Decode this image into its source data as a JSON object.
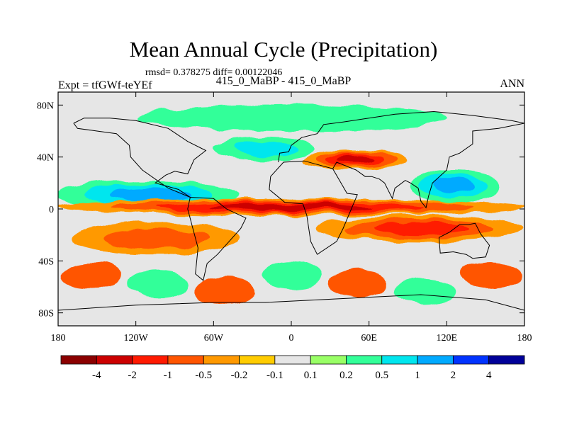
{
  "header": {
    "title": "Mean Annual Cycle (Precipitation)",
    "stats": "rmsd= 0.378275 diff= 0.00122046",
    "subtitle": "415_0_MaBP - 415_0_MaBP",
    "left_label": "Expt = tfGWf-teYEf",
    "right_label": "ANN"
  },
  "chart_data": {
    "type": "heatmap",
    "title": "Mean Annual Cycle (Precipitation)",
    "projection": "cylindrical equidistant (longitude-latitude) map with continent outlines",
    "x_axis": {
      "range": [
        -180,
        180
      ],
      "ticks": [
        -180,
        -120,
        -60,
        0,
        60,
        120,
        180
      ],
      "tick_labels": [
        "180",
        "120W",
        "60W",
        "0",
        "60E",
        "120E",
        "180"
      ]
    },
    "y_axis": {
      "range": [
        -90,
        90
      ],
      "ticks": [
        80,
        40,
        0,
        -40,
        -80
      ],
      "tick_labels": [
        "80N",
        "40N",
        "0",
        "40S",
        "80S"
      ]
    },
    "colorbar": {
      "levels": [
        -4,
        -2,
        -1,
        -0.5,
        -0.2,
        -0.1,
        0.1,
        0.2,
        0.5,
        1,
        2,
        4
      ],
      "labels": [
        "-4",
        "-2",
        "-1",
        "-0.5",
        "-0.2",
        "-0.1",
        "0.1",
        "0.2",
        "0.5",
        "1",
        "2",
        "4"
      ],
      "colors": [
        "#8b0000",
        "#cc0000",
        "#ff1a00",
        "#ff5500",
        "#ff9900",
        "#ffcc00",
        "#e6e6e6",
        "#99ff66",
        "#33ff99",
        "#00e6ee",
        "#00aaff",
        "#0033ff",
        "#000099"
      ]
    },
    "background_color": "#e6e6e6",
    "features": [
      {
        "name": "north-subtropical-pacific-band",
        "lon_range": [
          -180,
          -40
        ],
        "lat_range": [
          0,
          22
        ],
        "category": "positive",
        "peak": 1.0
      },
      {
        "name": "north-atlantic-storm-track",
        "lon_range": [
          -60,
          20
        ],
        "lat_range": [
          38,
          55
        ],
        "category": "positive",
        "peak": 0.5
      },
      {
        "name": "equatorial-deficit-band",
        "lon_range": [
          -180,
          180
        ],
        "lat_range": [
          -5,
          8
        ],
        "category": "negative",
        "peak": -2.0
      },
      {
        "name": "east-asia-storm-track-deficit",
        "lon_range": [
          10,
          90
        ],
        "lat_range": [
          30,
          45
        ],
        "category": "negative",
        "peak": -2.0
      },
      {
        "name": "south-pacific-deficit",
        "lon_range": [
          -170,
          -40
        ],
        "lat_range": [
          -35,
          -10
        ],
        "category": "negative",
        "peak": -0.5
      },
      {
        "name": "indian-ocean-deficit",
        "lon_range": [
          20,
          180
        ],
        "lat_range": [
          -25,
          -5
        ],
        "category": "negative",
        "peak": -1.0
      },
      {
        "name": "maritime-continent-wet",
        "lon_range": [
          90,
          160
        ],
        "lat_range": [
          5,
          30
        ],
        "category": "positive",
        "peak": 1.0
      },
      {
        "name": "southern-ocean-mixed",
        "lon_range": [
          -180,
          180
        ],
        "lat_range": [
          -75,
          -40
        ],
        "category": "mixed",
        "peak": 0.5
      },
      {
        "name": "arctic-positive-patches",
        "lon_range": [
          -120,
          120
        ],
        "lat_range": [
          60,
          80
        ],
        "category": "positive",
        "peak": 0.2
      }
    ]
  }
}
